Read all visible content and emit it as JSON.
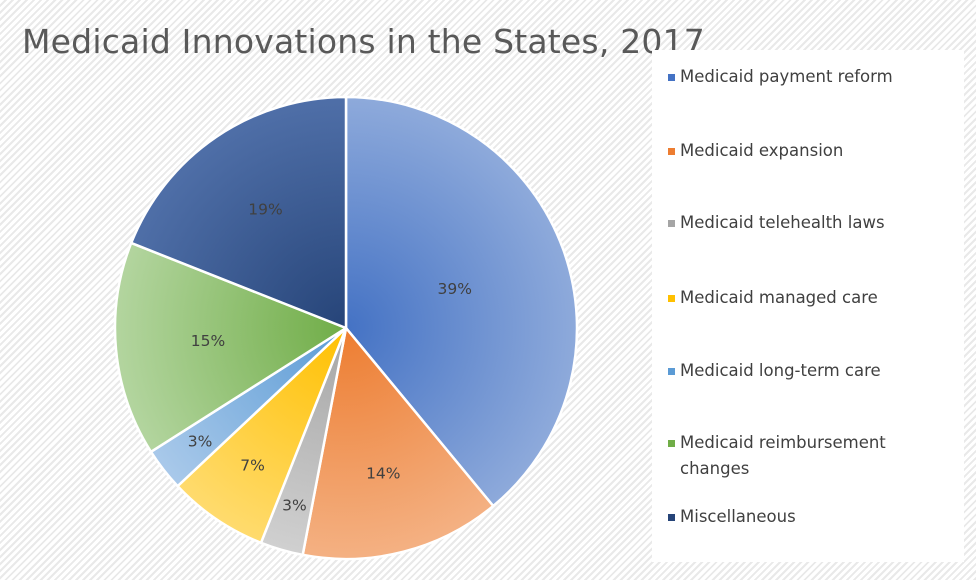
{
  "chart_data": {
    "type": "pie",
    "title": "Medicaid Innovations in the States, 2017",
    "slices": [
      {
        "label": "Medicaid payment reform",
        "value": 39,
        "display": "39%",
        "color": "#4472c4",
        "light": "#8eaadb"
      },
      {
        "label": "Medicaid expansion",
        "value": 14,
        "display": "14%",
        "color": "#ed7d31",
        "light": "#f4b183"
      },
      {
        "label": "Medicaid telehealth laws",
        "value": 3,
        "display": "3%",
        "color": "#a5a5a5",
        "light": "#d0d0d0"
      },
      {
        "label": "Medicaid managed care",
        "value": 7,
        "display": "7%",
        "color": "#ffc000",
        "light": "#ffdb6e"
      },
      {
        "label": "Medicaid long-term care",
        "value": 3,
        "display": "3%",
        "color": "#5b9bd5",
        "light": "#a9c9ea"
      },
      {
        "label": "Medicaid reimbursement changes",
        "value": 15,
        "display": "15%",
        "color": "#70ad47",
        "light": "#b3d59f"
      },
      {
        "label": "Miscellaneous",
        "value": 19,
        "display": "19%",
        "color": "#264478",
        "light": "#4f6fa8"
      }
    ],
    "legend_position": "right"
  }
}
